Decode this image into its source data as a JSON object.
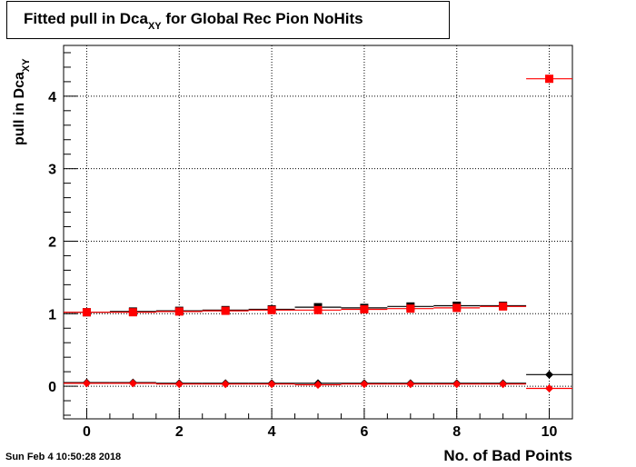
{
  "chart_data": {
    "type": "scatter",
    "title_main": "Fitted pull in Dca",
    "title_sub": "XY",
    "title_rest": " for Global Rec Pion NoHits",
    "xlabel": "No. of Bad Points",
    "ylabel_main": "pull in Dca",
    "ylabel_sub": "XY",
    "xlim": [
      -0.5,
      10.5
    ],
    "ylim": [
      -0.45,
      4.7
    ],
    "x_ticks": [
      0,
      2,
      4,
      6,
      8,
      10
    ],
    "y_ticks": [
      0,
      1,
      2,
      3,
      4
    ],
    "grid": true,
    "series": [
      {
        "marker": "square",
        "color": "#000000",
        "x": [
          0,
          1,
          2,
          3,
          4,
          5,
          6,
          7,
          8,
          9
        ],
        "y": [
          1.02,
          1.03,
          1.04,
          1.05,
          1.06,
          1.09,
          1.08,
          1.1,
          1.11,
          1.11
        ]
      },
      {
        "marker": "square",
        "color": "#ff0000",
        "x": [
          0,
          1,
          2,
          3,
          4,
          5,
          6,
          7,
          8,
          9,
          10
        ],
        "y": [
          1.02,
          1.02,
          1.03,
          1.04,
          1.05,
          1.05,
          1.06,
          1.07,
          1.08,
          1.1,
          4.24
        ]
      },
      {
        "marker": "diamond",
        "color": "#000000",
        "x": [
          0,
          1,
          2,
          3,
          4,
          5,
          6,
          7,
          8,
          9,
          10
        ],
        "y": [
          0.05,
          0.05,
          0.04,
          0.04,
          0.04,
          0.04,
          0.04,
          0.04,
          0.04,
          0.04,
          0.16
        ]
      },
      {
        "marker": "diamond",
        "color": "#ff0000",
        "x": [
          0,
          1,
          2,
          3,
          4,
          5,
          6,
          7,
          8,
          9,
          10
        ],
        "y": [
          0.04,
          0.04,
          0.03,
          0.03,
          0.03,
          0.02,
          0.03,
          0.03,
          0.03,
          0.03,
          -0.03
        ]
      }
    ]
  },
  "timestamp": "Sun Feb  4 10:50:28 2018"
}
